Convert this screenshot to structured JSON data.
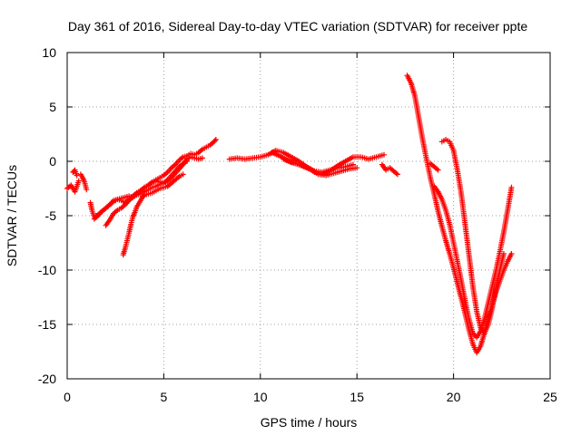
{
  "chart_data": {
    "type": "scatter",
    "title": "Day 361 of 2016, Sidereal Day-to-day VTEC variation (SDTVAR) for receiver ppte",
    "xlabel": "GPS time / hours",
    "ylabel": "SDTVAR / TECUs",
    "xlim": [
      0,
      25
    ],
    "ylim": [
      -20,
      10
    ],
    "xticks": [
      "0",
      "5",
      "10",
      "15",
      "20",
      "25"
    ],
    "yticks": [
      "-20",
      "-15",
      "-10",
      "-5",
      "0",
      "5",
      "10"
    ],
    "grid": true,
    "marker": "plus",
    "color": "#ff0000",
    "series": [
      {
        "x": [
          0.0,
          0.2,
          0.4,
          0.6
        ],
        "y": [
          -2.5,
          -2.2,
          -2.8,
          -1.8
        ]
      },
      {
        "x": [
          0.3,
          0.4,
          0.5
        ],
        "y": [
          -1.0,
          -0.8,
          -1.3
        ]
      },
      {
        "x": [
          0.7,
          0.8,
          0.9,
          1.0
        ],
        "y": [
          -1.2,
          -1.5,
          -1.9,
          -2.6
        ]
      },
      {
        "x": [
          1.2,
          1.3,
          1.4,
          1.6,
          1.8,
          2.0,
          2.2,
          2.4,
          2.6,
          2.8,
          3.0,
          3.2,
          3.4,
          3.6,
          3.8,
          4.0,
          4.2,
          4.4,
          4.6,
          4.8,
          5.0,
          5.2,
          5.4,
          5.6,
          5.8,
          6.0,
          6.2,
          6.4,
          6.6,
          6.8,
          7.0,
          7.2,
          7.4,
          7.6,
          7.7
        ],
        "y": [
          -3.8,
          -4.6,
          -5.1,
          -4.9,
          -4.6,
          -4.3,
          -4.0,
          -3.6,
          -3.5,
          -3.6,
          -3.8,
          -3.5,
          -3.2,
          -2.9,
          -2.7,
          -2.4,
          -2.2,
          -1.9,
          -1.7,
          -1.5,
          -1.3,
          -1.0,
          -0.6,
          -0.3,
          0.1,
          0.4,
          0.5,
          0.7,
          0.6,
          0.8,
          1.1,
          1.3,
          1.5,
          1.8,
          2.0
        ]
      },
      {
        "x": [
          1.4,
          1.6,
          1.8,
          2.0,
          2.2,
          2.4,
          2.6,
          2.8,
          3.0,
          3.2,
          3.4,
          3.6,
          3.8,
          4.0,
          4.2,
          4.4,
          4.6,
          4.8,
          5.0,
          5.2,
          5.4,
          5.6,
          5.8,
          6.0,
          6.2
        ],
        "y": [
          -5.3,
          -5.0,
          -4.6,
          -4.3,
          -4.0,
          -3.7,
          -3.5,
          -3.4,
          -3.3,
          -3.2,
          -3.3,
          -3.1,
          -3.0,
          -2.8,
          -2.6,
          -2.4,
          -2.3,
          -2.1,
          -2.0,
          -1.7,
          -1.3,
          -0.9,
          -0.5,
          -0.2,
          0.0
        ]
      },
      {
        "x": [
          2.0,
          2.2,
          2.4,
          2.6,
          2.8,
          3.0,
          3.2,
          3.4,
          3.6,
          3.8,
          4.0,
          4.2,
          4.4,
          4.6,
          4.8,
          5.0,
          5.2,
          5.4,
          5.6,
          5.8,
          6.0,
          6.2,
          6.4,
          6.6,
          6.8,
          7.0
        ],
        "y": [
          -5.9,
          -5.4,
          -4.8,
          -4.5,
          -4.3,
          -4.0,
          -3.6,
          -3.3,
          -3.0,
          -2.7,
          -2.4,
          -2.2,
          -2.0,
          -1.8,
          -1.9,
          -2.0,
          -1.8,
          -1.5,
          -1.1,
          -0.7,
          -0.3,
          0.2,
          0.4,
          0.3,
          0.2,
          0.3
        ]
      },
      {
        "x": [
          2.9,
          3.0,
          3.1,
          3.2,
          3.3,
          3.4,
          3.5,
          3.6,
          3.7,
          3.8,
          3.9,
          4.0,
          4.2,
          4.4,
          4.6,
          4.8,
          5.0,
          5.2,
          5.4,
          5.6,
          5.8,
          6.0
        ],
        "y": [
          -8.6,
          -8.0,
          -7.3,
          -6.6,
          -5.8,
          -5.1,
          -4.7,
          -4.2,
          -3.9,
          -3.6,
          -3.3,
          -3.1,
          -3.0,
          -2.9,
          -2.7,
          -2.5,
          -2.4,
          -2.3,
          -2.0,
          -1.7,
          -1.4,
          -1.2
        ]
      },
      {
        "x": [
          8.4,
          8.8,
          9.2,
          9.6,
          10.0,
          10.4,
          10.8,
          11.2,
          11.6,
          12.0,
          12.4,
          12.8,
          13.2,
          13.6,
          14.0,
          14.4,
          14.8,
          15.2,
          15.6,
          16.0,
          16.4
        ],
        "y": [
          0.2,
          0.3,
          0.2,
          0.3,
          0.4,
          0.6,
          1.0,
          0.8,
          0.4,
          0.0,
          -0.5,
          -1.0,
          -1.2,
          -0.9,
          -0.4,
          0.0,
          0.4,
          0.4,
          0.2,
          0.4,
          0.6
        ]
      },
      {
        "x": [
          10.6,
          11.0,
          11.4,
          11.8,
          12.2,
          12.6,
          13.0,
          13.4,
          13.8,
          14.2,
          14.6,
          15.0
        ],
        "y": [
          0.8,
          0.5,
          0.1,
          -0.2,
          -0.4,
          -0.7,
          -1.2,
          -1.3,
          -1.1,
          -0.9,
          -0.7,
          -0.6
        ]
      },
      {
        "x": [
          11.2,
          11.6,
          12.0,
          12.4,
          12.8,
          13.2,
          13.6,
          14.0,
          14.4,
          14.8
        ],
        "y": [
          0.2,
          -0.1,
          -0.3,
          -0.6,
          -0.9,
          -1.0,
          -0.8,
          -0.6,
          -0.5,
          -0.3
        ]
      },
      {
        "x": [
          16.3,
          16.5,
          16.7,
          16.9,
          17.1
        ],
        "y": [
          -0.3,
          -0.8,
          -0.6,
          -0.9,
          -1.2
        ]
      },
      {
        "x": [
          17.6,
          17.8,
          18.0,
          18.2,
          18.4,
          18.6,
          18.8,
          19.0,
          19.2,
          19.4,
          19.6,
          19.8,
          20.0,
          20.2,
          20.4,
          20.6,
          20.8,
          21.0,
          21.2,
          21.4,
          21.6,
          21.8,
          22.0,
          22.2,
          22.4,
          22.6,
          22.8,
          23.0
        ],
        "y": [
          7.9,
          7.2,
          6.0,
          4.0,
          2.0,
          0.2,
          -1.5,
          -3.0,
          -4.6,
          -6.0,
          -7.3,
          -8.5,
          -9.8,
          -11.2,
          -12.6,
          -14.0,
          -15.5,
          -16.8,
          -17.6,
          -17.0,
          -15.8,
          -14.4,
          -13.2,
          -12.0,
          -11.0,
          -10.0,
          -9.2,
          -8.5
        ]
      },
      {
        "x": [
          19.0,
          19.2,
          19.4,
          19.6,
          19.8,
          20.0,
          20.2,
          20.4,
          20.6,
          20.8,
          21.0,
          21.2,
          21.4,
          21.6,
          21.8,
          22.0,
          22.2,
          22.4,
          22.6,
          22.8,
          23.0
        ],
        "y": [
          -2.3,
          -2.8,
          -3.5,
          -4.5,
          -5.8,
          -7.5,
          -9.2,
          -11.0,
          -12.8,
          -14.5,
          -15.8,
          -16.2,
          -15.6,
          -14.5,
          -13.0,
          -11.5,
          -10.0,
          -8.3,
          -6.5,
          -4.5,
          -2.4
        ]
      },
      {
        "x": [
          19.4,
          19.6,
          19.8,
          20.0,
          20.2,
          20.4,
          20.6,
          20.8,
          21.0,
          21.2,
          21.4,
          21.6,
          21.8,
          22.0,
          22.2,
          22.4,
          22.6
        ],
        "y": [
          1.8,
          2.0,
          1.8,
          1.0,
          -0.8,
          -3.0,
          -5.8,
          -8.6,
          -11.5,
          -13.8,
          -15.3,
          -15.8,
          -15.0,
          -13.5,
          -11.6,
          -10.0,
          -8.5
        ]
      },
      {
        "x": [
          18.8,
          19.0,
          19.2
        ],
        "y": [
          -0.2,
          -0.5,
          -0.8
        ]
      }
    ]
  }
}
